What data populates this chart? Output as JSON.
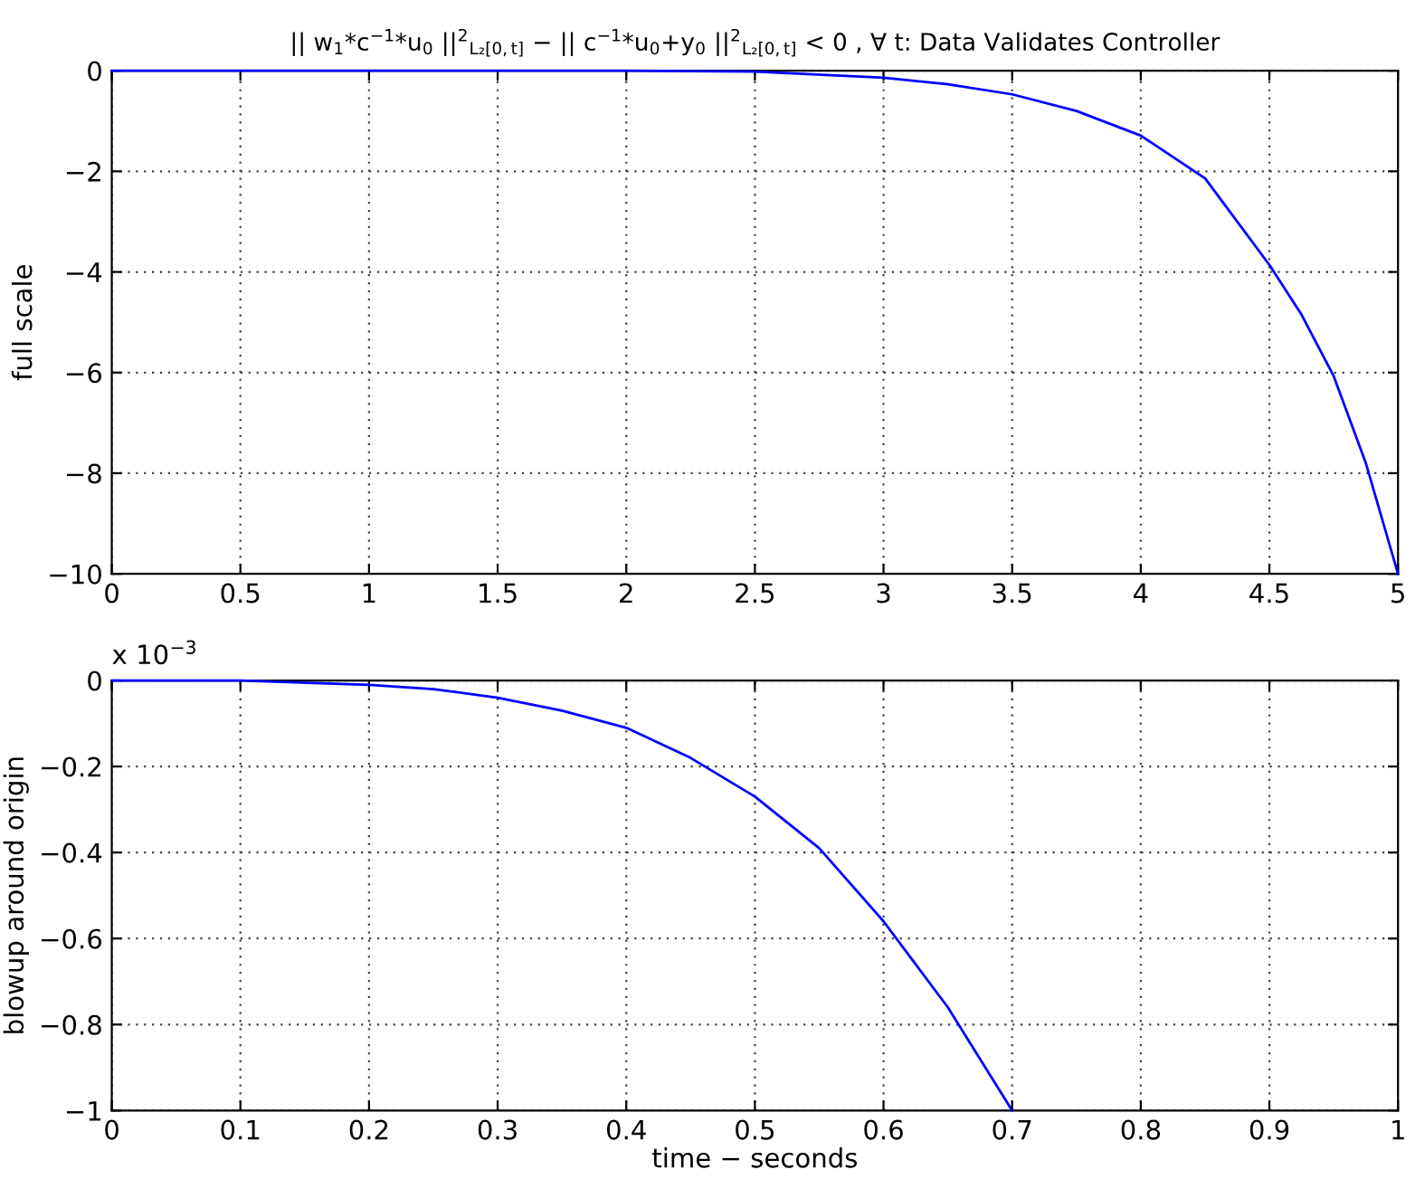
{
  "chart_data": [
    {
      "type": "line",
      "title": "|| w$_{1}$*c$^{−1}$*u$_{0}$ ||$^{2}$$_{L₂[0,t]}$ − || c$^{−1}$*u$_{0}$+y$_{0}$ ||$^{2}$$_{L₂[0,t]}$ < 0 , ∀ t: Data Validates Controller",
      "ylabel": "full scale",
      "x": [
        0,
        1,
        2,
        2.5,
        3,
        3.25,
        3.5,
        3.75,
        4,
        4.25,
        4.5,
        4.625,
        4.75,
        4.875,
        5
      ],
      "series": [
        {
          "color": "#0000ff",
          "values": [
            0,
            0,
            0,
            -0.02,
            -0.14,
            -0.27,
            -0.47,
            -0.8,
            -1.29,
            -2.14,
            -3.86,
            -4.85,
            -6.07,
            -7.8,
            -10
          ]
        }
      ],
      "xlim": [
        0,
        5
      ],
      "xticks": [
        0,
        0.5,
        1,
        1.5,
        2,
        2.5,
        3,
        3.5,
        4,
        4.5,
        5
      ],
      "ylim": [
        -10,
        0
      ],
      "yticks": [
        {
          "value": -10,
          "label": "−10"
        },
        {
          "value": -8,
          "label": "−8"
        },
        {
          "value": -6,
          "label": "−6"
        },
        {
          "value": -4,
          "label": "−4"
        },
        {
          "value": -2,
          "label": "−2"
        },
        0
      ],
      "grid": true,
      "line_style": "solid",
      "marker": "none"
    },
    {
      "type": "line",
      "xlabel": "time − seconds",
      "ylabel": "blowup around origin",
      "annotations": [
        "x 10$^{−3}$"
      ],
      "x": [
        0,
        0.1,
        0.2,
        0.25,
        0.3,
        0.35,
        0.4,
        0.45,
        0.5,
        0.55,
        0.6,
        0.65,
        0.7
      ],
      "series": [
        {
          "color": "#0000ff",
          "values": [
            0,
            0,
            -0.01,
            -0.02,
            -0.04,
            -0.07,
            -0.11,
            -0.18,
            -0.27,
            -0.39,
            -0.56,
            -0.76,
            -1
          ]
        }
      ],
      "xlim": [
        0,
        1
      ],
      "xticks": [
        0,
        0.1,
        0.2,
        0.3,
        0.4,
        0.5,
        0.6,
        0.7,
        0.8,
        0.9,
        1
      ],
      "ylim": [
        -1,
        0
      ],
      "yticks": [
        {
          "value": -1,
          "label": "−1"
        },
        {
          "value": -0.8,
          "label": "−0.8"
        },
        {
          "value": -0.6,
          "label": "−0.6"
        },
        {
          "value": -0.4,
          "label": "−0.4"
        },
        {
          "value": -0.2,
          "label": "−0.2"
        },
        0
      ],
      "grid": true,
      "line_style": "solid",
      "marker": "none"
    }
  ]
}
